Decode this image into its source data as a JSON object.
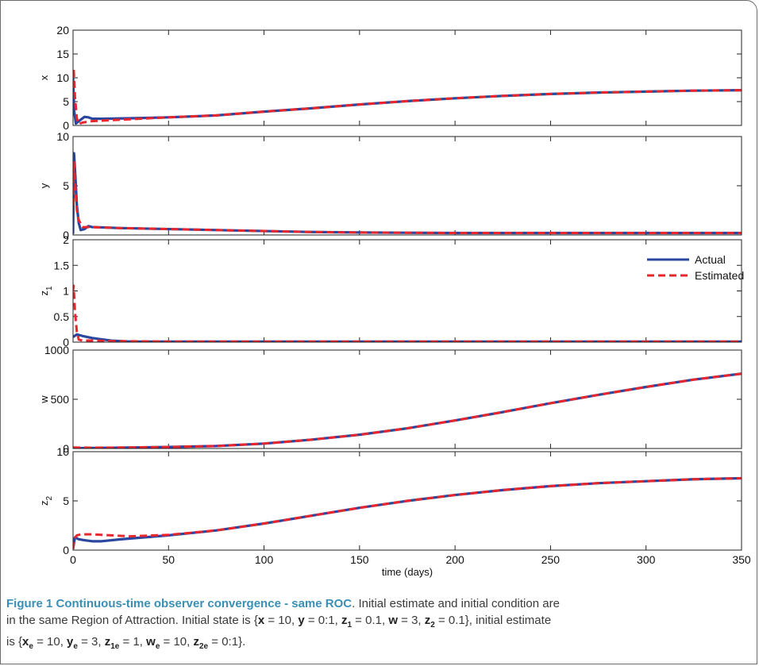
{
  "colors": {
    "actual": "#2a47a0",
    "estimated": "#e8262b",
    "axis": "#222222",
    "caption_title": "#3a8fb4"
  },
  "chart_data": [
    {
      "type": "line",
      "ylabel": "x",
      "sub": "",
      "xlim": [
        0,
        350
      ],
      "ylim": [
        0,
        20
      ],
      "yticks": [
        "0",
        "5",
        "10",
        "15",
        "20"
      ],
      "ytick_values": [
        0,
        5,
        10,
        15,
        20
      ],
      "series": [
        {
          "name": "Actual",
          "points": [
            [
              0,
              10
            ],
            [
              0.6,
              3
            ],
            [
              1.5,
              0.4
            ],
            [
              3,
              0.9
            ],
            [
              6,
              1.8
            ],
            [
              8,
              1.7
            ],
            [
              10,
              1.4
            ],
            [
              15,
              1.4
            ],
            [
              30,
              1.5
            ],
            [
              50,
              1.7
            ],
            [
              75,
              2.1
            ],
            [
              100,
              2.9
            ],
            [
              125,
              3.6
            ],
            [
              150,
              4.4
            ],
            [
              175,
              5.1
            ],
            [
              200,
              5.7
            ],
            [
              225,
              6.2
            ],
            [
              250,
              6.6
            ],
            [
              275,
              6.9
            ],
            [
              300,
              7.1
            ],
            [
              325,
              7.3
            ],
            [
              350,
              7.4
            ]
          ]
        },
        {
          "name": "Estimated",
          "points": [
            [
              0,
              10
            ],
            [
              0.3,
              12
            ],
            [
              1,
              6
            ],
            [
              2,
              1.5
            ],
            [
              3,
              0.3
            ],
            [
              5,
              0.6
            ],
            [
              10,
              0.9
            ],
            [
              20,
              1.1
            ],
            [
              30,
              1.3
            ],
            [
              50,
              1.7
            ],
            [
              75,
              2.1
            ],
            [
              100,
              2.9
            ],
            [
              125,
              3.6
            ],
            [
              150,
              4.4
            ],
            [
              175,
              5.1
            ],
            [
              200,
              5.7
            ],
            [
              225,
              6.2
            ],
            [
              250,
              6.6
            ],
            [
              275,
              6.9
            ],
            [
              300,
              7.1
            ],
            [
              325,
              7.3
            ],
            [
              350,
              7.4
            ]
          ]
        }
      ]
    },
    {
      "type": "line",
      "ylabel": "y",
      "sub": "",
      "xlim": [
        0,
        350
      ],
      "ylim": [
        0,
        10
      ],
      "yticks": [
        "0",
        "5",
        "10"
      ],
      "ytick_values": [
        0,
        5,
        10
      ],
      "series": [
        {
          "name": "Actual",
          "points": [
            [
              0,
              0.1
            ],
            [
              0.5,
              8.3
            ],
            [
              1.2,
              6
            ],
            [
              2,
              3
            ],
            [
              3,
              1.2
            ],
            [
              4,
              0.5
            ],
            [
              6,
              0.6
            ],
            [
              8,
              0.9
            ],
            [
              10,
              0.8
            ],
            [
              25,
              0.7
            ],
            [
              50,
              0.6
            ],
            [
              75,
              0.5
            ],
            [
              100,
              0.4
            ],
            [
              125,
              0.3
            ],
            [
              150,
              0.25
            ],
            [
              200,
              0.2
            ],
            [
              250,
              0.2
            ],
            [
              300,
              0.2
            ],
            [
              350,
              0.2
            ]
          ]
        },
        {
          "name": "Estimated",
          "points": [
            [
              0,
              3
            ],
            [
              0.5,
              7.5
            ],
            [
              1,
              5.5
            ],
            [
              2,
              2.5
            ],
            [
              3,
              1.5
            ],
            [
              5,
              0.8
            ],
            [
              10,
              0.8
            ],
            [
              25,
              0.7
            ],
            [
              50,
              0.6
            ],
            [
              75,
              0.5
            ],
            [
              100,
              0.4
            ],
            [
              125,
              0.3
            ],
            [
              150,
              0.25
            ],
            [
              200,
              0.2
            ],
            [
              250,
              0.2
            ],
            [
              300,
              0.2
            ],
            [
              350,
              0.2
            ]
          ]
        }
      ]
    },
    {
      "type": "line",
      "ylabel": "z",
      "sub": "1",
      "xlim": [
        0,
        350
      ],
      "ylim": [
        0,
        2
      ],
      "yticks": [
        "0",
        "0.5",
        "1",
        "1.5",
        "2"
      ],
      "ytick_values": [
        0,
        0.5,
        1,
        1.5,
        2
      ],
      "legend": {
        "position": "top-right",
        "entries": [
          "Actual",
          "Estimated"
        ]
      },
      "series": [
        {
          "name": "Actual",
          "points": [
            [
              0,
              0.1
            ],
            [
              2,
              0.15
            ],
            [
              5,
              0.12
            ],
            [
              10,
              0.08
            ],
            [
              20,
              0.03
            ],
            [
              30,
              0.01
            ],
            [
              50,
              0.01
            ],
            [
              350,
              0.01
            ]
          ]
        },
        {
          "name": "Estimated",
          "points": [
            [
              0,
              1.0
            ],
            [
              0.3,
              1.1
            ],
            [
              1,
              0.6
            ],
            [
              2,
              0.2
            ],
            [
              3,
              0.05
            ],
            [
              5,
              0.03
            ],
            [
              10,
              0.03
            ],
            [
              20,
              0.02
            ],
            [
              50,
              0.01
            ],
            [
              350,
              0.01
            ]
          ]
        }
      ]
    },
    {
      "type": "line",
      "ylabel": "w",
      "sub": "",
      "xlim": [
        0,
        350
      ],
      "ylim": [
        0,
        1000
      ],
      "yticks": [
        "0",
        "500",
        "1000"
      ],
      "ytick_values": [
        0,
        500,
        1000
      ],
      "series": [
        {
          "name": "Actual",
          "points": [
            [
              0,
              3
            ],
            [
              10,
              5
            ],
            [
              25,
              8
            ],
            [
              50,
              15
            ],
            [
              75,
              25
            ],
            [
              100,
              50
            ],
            [
              125,
              90
            ],
            [
              150,
              140
            ],
            [
              175,
              205
            ],
            [
              200,
              285
            ],
            [
              225,
              370
            ],
            [
              250,
              460
            ],
            [
              275,
              545
            ],
            [
              300,
              625
            ],
            [
              325,
              700
            ],
            [
              350,
              760
            ]
          ]
        },
        {
          "name": "Estimated",
          "points": [
            [
              0,
              10
            ],
            [
              10,
              8
            ],
            [
              25,
              10
            ],
            [
              50,
              15
            ],
            [
              75,
              25
            ],
            [
              100,
              50
            ],
            [
              125,
              90
            ],
            [
              150,
              140
            ],
            [
              175,
              205
            ],
            [
              200,
              285
            ],
            [
              225,
              370
            ],
            [
              250,
              460
            ],
            [
              275,
              545
            ],
            [
              300,
              625
            ],
            [
              325,
              700
            ],
            [
              350,
              760
            ]
          ]
        }
      ]
    },
    {
      "type": "line",
      "ylabel": "z",
      "sub": "2",
      "xlim": [
        0,
        350
      ],
      "ylim": [
        0,
        10
      ],
      "yticks": [
        "0",
        "5",
        "10"
      ],
      "ytick_values": [
        0,
        5,
        10
      ],
      "xlabel": "time (days)",
      "xticks": [
        "0",
        "50",
        "100",
        "150",
        "200",
        "250",
        "300",
        "350"
      ],
      "xtick_values": [
        0,
        50,
        100,
        150,
        200,
        250,
        300,
        350
      ],
      "series": [
        {
          "name": "Actual",
          "points": [
            [
              0,
              0.1
            ],
            [
              1,
              1.3
            ],
            [
              3,
              1.1
            ],
            [
              6,
              1.0
            ],
            [
              10,
              0.9
            ],
            [
              15,
              0.9
            ],
            [
              25,
              1.1
            ],
            [
              50,
              1.5
            ],
            [
              75,
              2.0
            ],
            [
              100,
              2.7
            ],
            [
              125,
              3.5
            ],
            [
              150,
              4.3
            ],
            [
              175,
              5.0
            ],
            [
              200,
              5.6
            ],
            [
              225,
              6.1
            ],
            [
              250,
              6.5
            ],
            [
              275,
              6.8
            ],
            [
              300,
              7.0
            ],
            [
              325,
              7.2
            ],
            [
              350,
              7.3
            ]
          ]
        },
        {
          "name": "Estimated",
          "points": [
            [
              0,
              0.1
            ],
            [
              0.8,
              1.2
            ],
            [
              2,
              1.5
            ],
            [
              4,
              1.6
            ],
            [
              10,
              1.6
            ],
            [
              20,
              1.5
            ],
            [
              30,
              1.4
            ],
            [
              50,
              1.55
            ],
            [
              75,
              2.0
            ],
            [
              100,
              2.7
            ],
            [
              125,
              3.5
            ],
            [
              150,
              4.3
            ],
            [
              175,
              5.0
            ],
            [
              200,
              5.6
            ],
            [
              225,
              6.1
            ],
            [
              250,
              6.5
            ],
            [
              275,
              6.8
            ],
            [
              300,
              7.0
            ],
            [
              325,
              7.2
            ],
            [
              350,
              7.3
            ]
          ]
        }
      ]
    }
  ],
  "caption": {
    "title": "Figure 1 Continuous-time observer convergence - same ROC",
    "line1_rest": ". Initial estimate and initial condition are",
    "line2": "in the same Region of Attraction. Initial state is {",
    "state": [
      {
        "sym": "x",
        "sub": "",
        "val": " = 10, "
      },
      {
        "sym": "y",
        "sub": "",
        "val": " = 0:1, "
      },
      {
        "sym": "z",
        "sub": "1",
        "val": " = 0.1, "
      },
      {
        "sym": "w",
        "sub": "",
        "val": " = 3, "
      },
      {
        "sym": "z",
        "sub": "2",
        "val": " = 0.1}, initial estimate"
      }
    ],
    "line3_prefix": "is {",
    "estimate": [
      {
        "sym": "x",
        "sub": "e",
        "val": " = 10, "
      },
      {
        "sym": "y",
        "sub": "e",
        "val": " = 3, "
      },
      {
        "sym": "z",
        "sub": "1e",
        "val": " = 1, "
      },
      {
        "sym": "w",
        "sub": "e",
        "val": " = 10, "
      },
      {
        "sym": "z",
        "sub": "2e",
        "val": " = 0:1}."
      }
    ]
  }
}
